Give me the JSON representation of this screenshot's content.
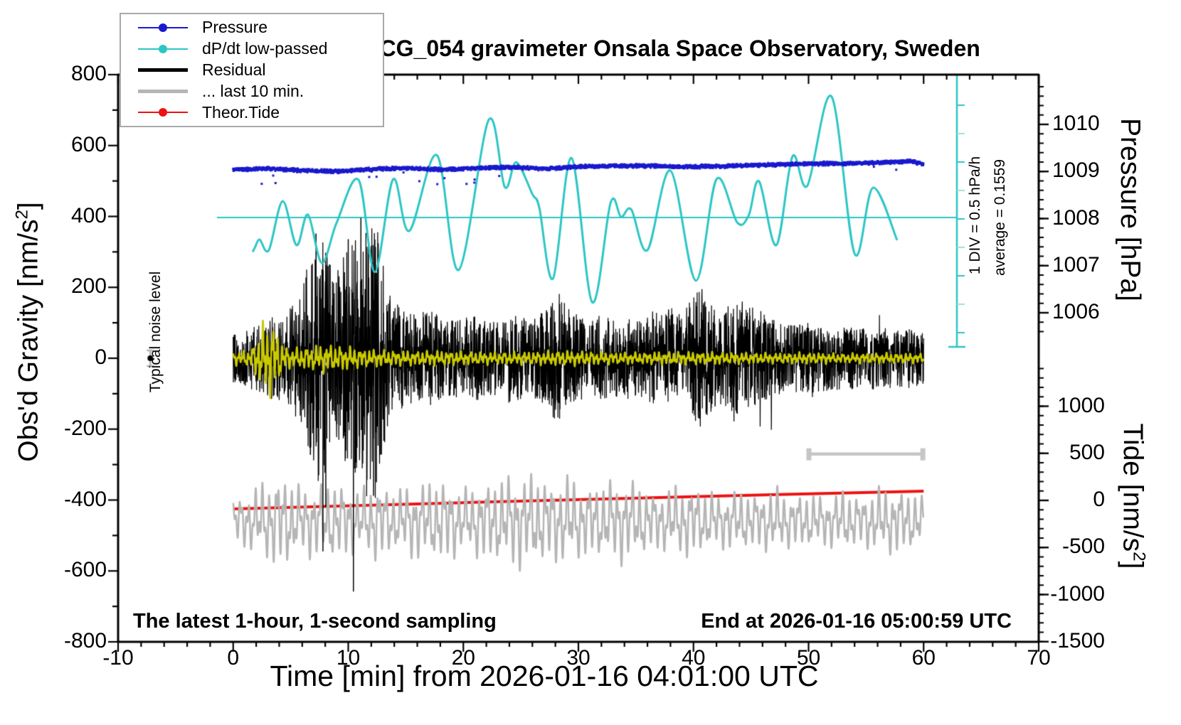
{
  "legend": {
    "items": [
      {
        "label": "Pressure",
        "color": "#1a1acd",
        "style": "dot"
      },
      {
        "label": "dP/dt low-passed",
        "color": "#2cc5c5",
        "style": "dot"
      },
      {
        "label": "Residual",
        "color": "#000000",
        "style": "thick"
      },
      {
        "label": "... last 10 min.",
        "color": "#b5b5b5",
        "style": "thick"
      },
      {
        "label": "Theor.Tide",
        "color": "#ee1111",
        "style": "dot"
      }
    ]
  },
  "footer": {
    "left": "The latest 1-hour, 1-second sampling",
    "right": "End at 2026-01-16 05:00:59 UTC"
  },
  "annotations": {
    "noise": "Typical noise level",
    "div": "1 DIV = 0.5 hPa/h",
    "avg": "average = 0.1559"
  },
  "labels": {
    "gravity_pre": "Obs'd Gravity [nm/s",
    "gravity_sup": "2",
    "gravity_post": "]",
    "pressure": "Pressure [hPa]",
    "tide_pre": "Tide [nm/s",
    "tide_sup": "2",
    "tide_post": "]"
  },
  "chart_data": {
    "type": "line",
    "title": "SCG_054 gravimeter Onsala Space Observatory, Sweden",
    "xlabel": "Time [min] from 2026-01-16 04:01:00 UTC",
    "axes": {
      "x": {
        "range": [
          -10,
          70
        ],
        "major_ticks": [
          -10,
          0,
          10,
          20,
          30,
          40,
          50,
          60,
          70
        ],
        "minor_step": 2
      },
      "gravity": {
        "range": [
          -800,
          800
        ],
        "major_ticks": [
          800,
          600,
          400,
          200,
          0,
          -200,
          -400,
          -600,
          -800
        ],
        "minor_step": 100,
        "label": "Obs'd Gravity [nm/s2]"
      },
      "pressure": {
        "major_ticks": [
          1010,
          1009,
          1008,
          1007,
          1006
        ],
        "minor_step": 0.2,
        "label": "Pressure [hPa]"
      },
      "tide": {
        "major_ticks": [
          1000,
          500,
          0,
          -500,
          -1000,
          -1500
        ],
        "minor_step": 100,
        "label": "Tide [nm/s2]"
      },
      "dpdt": {
        "div_hpa_per_h": 0.5,
        "average": 0.1559,
        "zero_line_gravity": 397,
        "tick_spacing_gravity": 80
      }
    },
    "series": {
      "pressure": {
        "axis": "pressure",
        "color": "#1a1acd",
        "scatter_sd": 0.045,
        "points": [
          [
            0,
            1009.04
          ],
          [
            3,
            1009.06
          ],
          [
            6,
            1009.02
          ],
          [
            9,
            1009.0
          ],
          [
            12,
            1009.05
          ],
          [
            15,
            1009.07
          ],
          [
            18,
            1009.04
          ],
          [
            21,
            1009.07
          ],
          [
            24,
            1009.09
          ],
          [
            27,
            1009.06
          ],
          [
            30,
            1009.1
          ],
          [
            33,
            1009.12
          ],
          [
            36,
            1009.12
          ],
          [
            39,
            1009.1
          ],
          [
            42,
            1009.11
          ],
          [
            45,
            1009.13
          ],
          [
            48,
            1009.15
          ],
          [
            51,
            1009.17
          ],
          [
            54,
            1009.17
          ],
          [
            57,
            1009.2
          ],
          [
            59,
            1009.21
          ],
          [
            60,
            1009.16
          ]
        ]
      },
      "dpdt": {
        "axis": "gravity",
        "color": "#2cc5c5",
        "points": [
          [
            1.7,
            300
          ],
          [
            1.9,
            313
          ],
          [
            2.3,
            335
          ],
          [
            3.1,
            305
          ],
          [
            4.3,
            443
          ],
          [
            5.5,
            319
          ],
          [
            6.5,
            405
          ],
          [
            7.7,
            269
          ],
          [
            9.0,
            383
          ],
          [
            10.9,
            503
          ],
          [
            12.3,
            243
          ],
          [
            13.9,
            505
          ],
          [
            15.3,
            359
          ],
          [
            17.7,
            573
          ],
          [
            19.6,
            249
          ],
          [
            22.2,
            672
          ],
          [
            23.6,
            483
          ],
          [
            24.6,
            553
          ],
          [
            26.0,
            463
          ],
          [
            26.6,
            425
          ],
          [
            27.8,
            225
          ],
          [
            29.4,
            565
          ],
          [
            31.2,
            158
          ],
          [
            32.8,
            439
          ],
          [
            33.7,
            399
          ],
          [
            34.6,
            419
          ],
          [
            36.0,
            305
          ],
          [
            38.0,
            529
          ],
          [
            40.2,
            219
          ],
          [
            42.0,
            505
          ],
          [
            43.8,
            383
          ],
          [
            44.8,
            403
          ],
          [
            45.7,
            499
          ],
          [
            47.2,
            319
          ],
          [
            48.6,
            569
          ],
          [
            49.9,
            487
          ],
          [
            52.0,
            738
          ],
          [
            54.0,
            295
          ],
          [
            55.6,
            481
          ],
          [
            57.7,
            333
          ]
        ]
      },
      "residual": {
        "axis": "gravity",
        "color": "#000000",
        "envelope": [
          [
            0,
            70
          ],
          [
            1,
            78
          ],
          [
            2,
            95
          ],
          [
            3,
            112
          ],
          [
            4,
            122
          ],
          [
            5,
            150
          ],
          [
            6,
            190
          ],
          [
            6.5,
            280
          ],
          [
            7,
            345
          ],
          [
            7.5,
            360
          ],
          [
            8,
            330
          ],
          [
            8.7,
            255
          ],
          [
            9.5,
            285
          ],
          [
            10.2,
            330
          ],
          [
            11,
            375
          ],
          [
            11.8,
            410
          ],
          [
            12.3,
            420
          ],
          [
            12.8,
            300
          ],
          [
            13.3,
            225
          ],
          [
            14,
            160
          ],
          [
            15,
            140
          ],
          [
            16,
            128
          ],
          [
            17,
            136
          ],
          [
            18,
            118
          ],
          [
            19,
            108
          ],
          [
            20,
            114
          ],
          [
            21,
            120
          ],
          [
            22,
            108
          ],
          [
            23,
            102
          ],
          [
            24,
            126
          ],
          [
            25,
            116
          ],
          [
            26,
            108
          ],
          [
            27,
            136
          ],
          [
            28,
            178
          ],
          [
            28.7,
            196
          ],
          [
            29.5,
            146
          ],
          [
            30,
            122
          ],
          [
            31,
            108
          ],
          [
            32,
            126
          ],
          [
            33,
            108
          ],
          [
            34,
            118
          ],
          [
            35,
            108
          ],
          [
            36,
            136
          ],
          [
            37,
            126
          ],
          [
            38,
            146
          ],
          [
            39,
            118
          ],
          [
            40,
            182
          ],
          [
            40.8,
            196
          ],
          [
            41.5,
            152
          ],
          [
            42,
            130
          ],
          [
            43,
            146
          ],
          [
            44,
            166
          ],
          [
            45,
            148
          ],
          [
            46,
            130
          ],
          [
            47,
            110
          ],
          [
            48,
            98
          ],
          [
            49,
            96
          ],
          [
            50,
            100
          ],
          [
            51,
            96
          ],
          [
            52,
            88
          ],
          [
            53,
            96
          ],
          [
            54,
            88
          ],
          [
            55,
            86
          ],
          [
            56,
            92
          ],
          [
            57,
            86
          ],
          [
            58,
            80
          ],
          [
            59,
            86
          ],
          [
            60,
            80
          ]
        ],
        "spikes": [
          [
            7.2,
            352
          ],
          [
            7.8,
            -545
          ],
          [
            8.05,
            -420
          ],
          [
            10.0,
            336
          ],
          [
            10.45,
            -658
          ],
          [
            11.1,
            396
          ],
          [
            12.2,
            -388
          ],
          [
            12.45,
            -350
          ]
        ]
      },
      "residual_smooth": {
        "axis": "gravity",
        "color": "#c9c900",
        "periods": [
          0.42,
          0.185,
          0.95
        ],
        "envelope": [
          [
            0,
            14
          ],
          [
            1.5,
            16
          ],
          [
            2.1,
            45
          ],
          [
            2.6,
            72
          ],
          [
            3.2,
            80
          ],
          [
            3.8,
            58
          ],
          [
            4.3,
            28
          ],
          [
            5,
            20
          ],
          [
            6,
            22
          ],
          [
            7,
            26
          ],
          [
            8,
            30
          ],
          [
            9,
            26
          ],
          [
            10,
            24
          ],
          [
            11,
            20
          ],
          [
            12,
            18
          ],
          [
            14,
            16
          ],
          [
            16,
            15
          ],
          [
            18,
            16
          ],
          [
            20,
            14
          ],
          [
            23,
            13
          ],
          [
            26,
            14
          ],
          [
            29,
            16
          ],
          [
            32,
            13
          ],
          [
            35,
            12
          ],
          [
            38,
            14
          ],
          [
            41,
            13
          ],
          [
            44,
            12
          ],
          [
            47,
            11
          ],
          [
            50,
            12
          ],
          [
            53,
            10
          ],
          [
            56,
            11
          ],
          [
            60,
            10
          ]
        ]
      },
      "last10": {
        "axis": "gravity",
        "color": "#b5b5b5",
        "center": -459,
        "periods": [
          0.63,
          0.285,
          1.8
        ],
        "envelope": [
          [
            0,
            45
          ],
          [
            1.5,
            60
          ],
          [
            3,
            85
          ],
          [
            4.5,
            95
          ],
          [
            5.5,
            72
          ],
          [
            7,
            72
          ],
          [
            9,
            80
          ],
          [
            11,
            62
          ],
          [
            12.5,
            82
          ],
          [
            14,
            62
          ],
          [
            15.5,
            75
          ],
          [
            17,
            80
          ],
          [
            18.5,
            85
          ],
          [
            20,
            62
          ],
          [
            21.5,
            78
          ],
          [
            23,
            85
          ],
          [
            24.5,
            95
          ],
          [
            26,
            95
          ],
          [
            27.5,
            82
          ],
          [
            29,
            90
          ],
          [
            30.5,
            72
          ],
          [
            32,
            75
          ],
          [
            33.5,
            85
          ],
          [
            35,
            78
          ],
          [
            36.5,
            58
          ],
          [
            38,
            66
          ],
          [
            39.5,
            75
          ],
          [
            41,
            62
          ],
          [
            42.5,
            55
          ],
          [
            44,
            62
          ],
          [
            45.5,
            55
          ],
          [
            47,
            68
          ],
          [
            48.5,
            52
          ],
          [
            50,
            56
          ],
          [
            51.5,
            50
          ],
          [
            53,
            62
          ],
          [
            54.5,
            50
          ],
          [
            56,
            66
          ],
          [
            57.5,
            68
          ],
          [
            59,
            58
          ],
          [
            60,
            50
          ]
        ]
      },
      "tide": {
        "axis": "tide",
        "color": "#ee1111",
        "points": [
          [
            0,
            -91
          ],
          [
            20,
            -24
          ],
          [
            40,
            40
          ],
          [
            60,
            98
          ]
        ]
      }
    },
    "markers": {
      "noise_level": {
        "t": -7.2,
        "value": 0,
        "error": 22
      },
      "last10_bar": {
        "t_start": 50,
        "t_end": 59.9,
        "gravity": -270,
        "color": "#c5c5c5"
      }
    }
  }
}
